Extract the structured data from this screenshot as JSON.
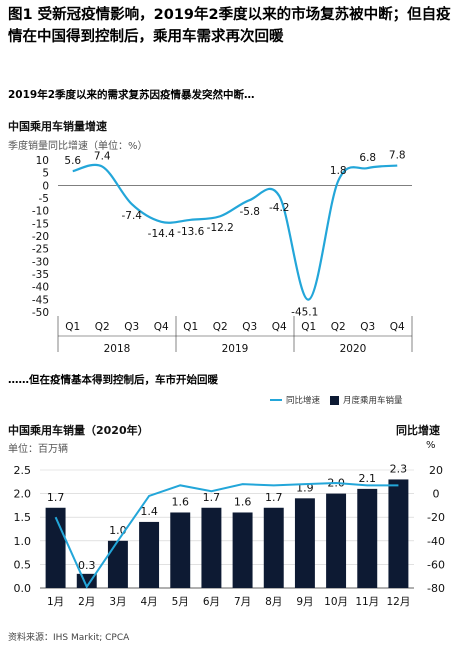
{
  "figure_title": "图1 受新冠疫情影响，2019年2季度以来的市场复苏被中断；但自疫情在中国得到控制后，乘用车需求再次回暖",
  "section1_heading": "2019年2季度以来的需求复苏因疫情暴发突然中断…",
  "section2_heading": "……但在疫情基本得到控制后，车市开始回暖",
  "source": "资料来源：IHS Markit; CPCA",
  "colors": {
    "line": "#23a6d9",
    "bar": "#0d1a33",
    "grid": "#cfcfcf"
  },
  "chart_data": [
    {
      "type": "line",
      "title": "中国乘用车销量增速",
      "subtitle": "季度销量同比增速（单位：%）",
      "x": [
        "Q1",
        "Q2",
        "Q3",
        "Q4",
        "Q1",
        "Q2",
        "Q3",
        "Q4",
        "Q1",
        "Q2",
        "Q3",
        "Q4"
      ],
      "years": [
        "2018",
        "2019",
        "2020"
      ],
      "series": [
        {
          "values": [
            5.6,
            7.4,
            -7.4,
            -14.4,
            -13.6,
            -12.2,
            -5.8,
            -4.2,
            -45.1,
            1.8,
            6.8,
            7.8
          ]
        }
      ],
      "yticks": [
        10,
        5,
        0,
        -5,
        -10,
        -15,
        -20,
        -25,
        -30,
        -35,
        -40,
        -45,
        -50
      ],
      "ylim": [
        -50,
        10
      ],
      "grid": false
    },
    {
      "type": "bar",
      "title": "中国乘用车销量（2020年）",
      "subtitle": "单位：百万辆",
      "right_axis_title": "同比增速",
      "right_axis_unit": "%",
      "categories": [
        "1月",
        "2月",
        "3月",
        "4月",
        "5月",
        "6月",
        "7月",
        "8月",
        "9月",
        "10月",
        "11月",
        "12月"
      ],
      "series": [
        {
          "name": "月度乘用车销量",
          "axis": "left",
          "values": [
            1.7,
            0.3,
            1.0,
            1.4,
            1.6,
            1.7,
            1.6,
            1.7,
            1.9,
            2.0,
            2.1,
            2.3
          ]
        },
        {
          "name": "同比增速",
          "axis": "right",
          "type": "line",
          "values": [
            -20,
            -79,
            -40,
            -2,
            7,
            2,
            8,
            7,
            8,
            9,
            7,
            7
          ]
        }
      ],
      "legend": "top-right",
      "yticks_left": [
        "2.5",
        "2.0",
        "1.5",
        "1.0",
        "0.5",
        "0.0"
      ],
      "yticks_right": [
        "20",
        "0",
        "-20",
        "-40",
        "-60",
        "-80"
      ],
      "ylim_left": [
        0,
        2.5
      ],
      "ylim_right": [
        -80,
        20
      ],
      "grid": true
    }
  ]
}
